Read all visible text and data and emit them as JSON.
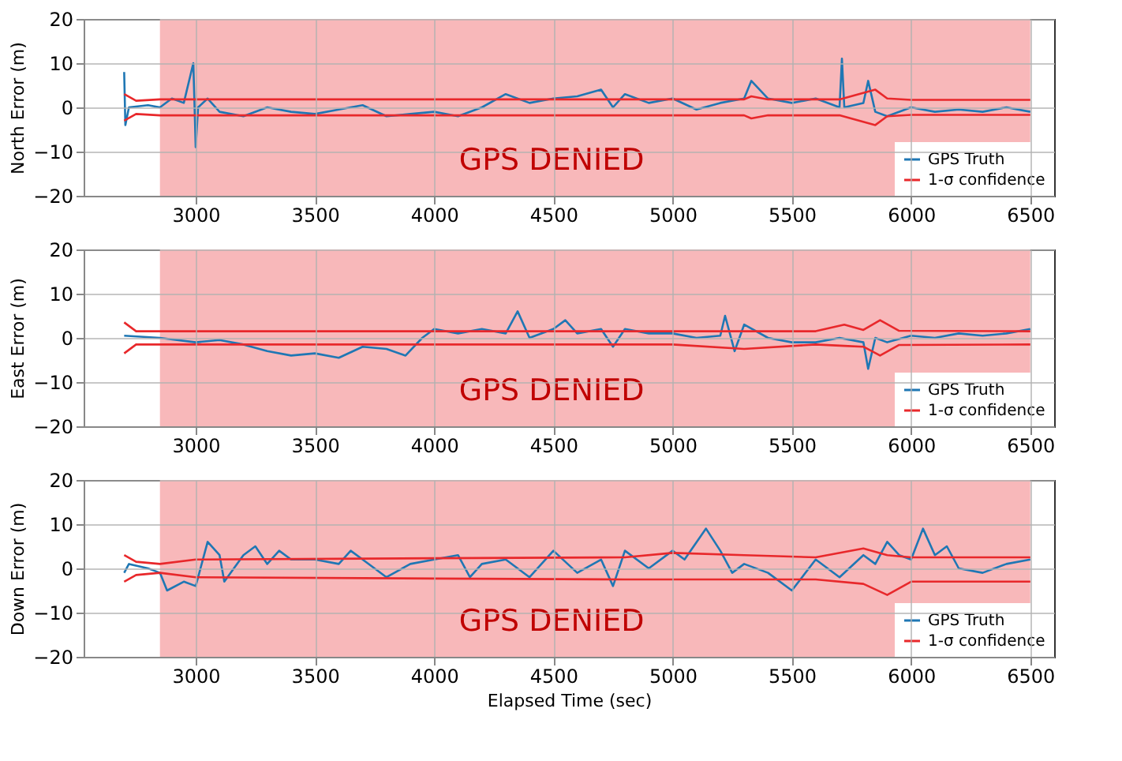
{
  "chart_data": [
    {
      "type": "line",
      "ylabel": "North Error (m)",
      "xlim": [
        2530,
        6600
      ],
      "ylim": [
        -20,
        20
      ],
      "xticks": [
        3000,
        3500,
        4000,
        4500,
        5000,
        5500,
        6000,
        6500
      ],
      "yticks": [
        -20,
        -10,
        0,
        10,
        20
      ],
      "grid": true,
      "legend": "bottom right",
      "bands": [
        {
          "axis": "x",
          "from": 2850,
          "to": 6500,
          "label": "GPS DENIED",
          "color": "#f8b8ba"
        }
      ],
      "series": [
        {
          "name": "GPS Truth",
          "color": "#1f77b4",
          "x": [
            2700,
            2705,
            2720,
            2800,
            2850,
            2900,
            2950,
            2990,
            3000,
            3010,
            3050,
            3100,
            3200,
            3300,
            3400,
            3500,
            3600,
            3700,
            3800,
            3900,
            4000,
            4100,
            4200,
            4300,
            4400,
            4500,
            4600,
            4700,
            4750,
            4800,
            4900,
            5000,
            5100,
            5200,
            5300,
            5330,
            5400,
            5500,
            5600,
            5700,
            5710,
            5720,
            5800,
            5820,
            5850,
            5900,
            6000,
            6100,
            6200,
            6300,
            6400,
            6500
          ],
          "values": [
            8,
            -4,
            0,
            0.5,
            0,
            2,
            1,
            10,
            -9,
            0,
            2,
            -1,
            -2,
            0,
            -1,
            -1.5,
            -0.5,
            0.5,
            -2,
            -1.5,
            -1,
            -2,
            0,
            3,
            1,
            2,
            2.5,
            4,
            0,
            3,
            1,
            2,
            -0.5,
            1,
            2,
            6,
            2,
            1,
            2,
            0,
            11,
            0,
            1,
            6,
            -1,
            -2,
            0,
            -1,
            -0.5,
            -1,
            0,
            -1
          ]
        },
        {
          "name": "1-σ confidence",
          "color": "#e8282b",
          "x": [
            2700,
            2750,
            2850,
            3500,
            4500,
            5300,
            5330,
            5400,
            5700,
            5850,
            5900,
            6000,
            6500
          ],
          "values": [
            3,
            1.5,
            1.8,
            1.8,
            1.8,
            1.8,
            2.5,
            1.8,
            1.8,
            4,
            2,
            1.7,
            1.7
          ]
        },
        {
          "color": "#e8282b",
          "x": [
            2700,
            2750,
            2850,
            3500,
            4500,
            5300,
            5330,
            5400,
            5700,
            5850,
            5900,
            6000,
            6500
          ],
          "values": [
            -3,
            -1.5,
            -1.8,
            -1.8,
            -1.8,
            -1.8,
            -2.5,
            -1.8,
            -1.8,
            -4,
            -2,
            -1.7,
            -1.7
          ]
        }
      ]
    },
    {
      "type": "line",
      "ylabel": "East Error (m)",
      "xlim": [
        2530,
        6600
      ],
      "ylim": [
        -20,
        20
      ],
      "xticks": [
        3000,
        3500,
        4000,
        4500,
        5000,
        5500,
        6000,
        6500
      ],
      "yticks": [
        -20,
        -10,
        0,
        10,
        20
      ],
      "grid": true,
      "legend": "bottom right",
      "bands": [
        {
          "axis": "x",
          "from": 2850,
          "to": 6500,
          "label": "GPS DENIED",
          "color": "#f8b8ba"
        }
      ],
      "series": [
        {
          "name": "GPS Truth",
          "color": "#1f77b4",
          "x": [
            2700,
            2850,
            3000,
            3100,
            3200,
            3300,
            3400,
            3500,
            3600,
            3700,
            3800,
            3880,
            3950,
            4000,
            4100,
            4200,
            4300,
            4350,
            4400,
            4500,
            4550,
            4600,
            4700,
            4750,
            4800,
            4900,
            5000,
            5100,
            5200,
            5220,
            5260,
            5300,
            5400,
            5500,
            5600,
            5700,
            5800,
            5820,
            5850,
            5900,
            6000,
            6100,
            6200,
            6300,
            6400,
            6500
          ],
          "values": [
            0.5,
            0,
            -1,
            -0.5,
            -1.5,
            -3,
            -4,
            -3.5,
            -4.5,
            -2,
            -2.5,
            -4,
            0,
            2,
            1,
            2,
            1,
            6,
            0,
            2,
            4,
            1,
            2,
            -2,
            2,
            1,
            1,
            0,
            0.5,
            5,
            -3,
            3,
            0,
            -1,
            -1,
            0,
            -1,
            -7,
            0,
            -1,
            0.5,
            0,
            1,
            0.5,
            1,
            2
          ]
        },
        {
          "name": "1-σ confidence",
          "color": "#e8282b",
          "x": [
            2700,
            2750,
            2850,
            4000,
            5000,
            5600,
            5720,
            5800,
            5870,
            5950,
            6500
          ],
          "values": [
            3.5,
            1.5,
            1.5,
            1.5,
            1.5,
            1.5,
            3,
            1.8,
            4,
            1.6,
            1.5
          ]
        },
        {
          "color": "#e8282b",
          "x": [
            2700,
            2750,
            2850,
            4000,
            5000,
            5300,
            5600,
            5720,
            5800,
            5870,
            5950,
            6500
          ],
          "values": [
            -3.5,
            -1.5,
            -1.5,
            -1.5,
            -1.5,
            -2.5,
            -1.5,
            -1.8,
            -2,
            -4,
            -1.6,
            -1.5
          ]
        }
      ]
    },
    {
      "type": "line",
      "xlabel": "Elapsed Time (sec)",
      "ylabel": "Down Error (m)",
      "xlim": [
        2530,
        6600
      ],
      "ylim": [
        -20,
        20
      ],
      "xticks": [
        3000,
        3500,
        4000,
        4500,
        5000,
        5500,
        6000,
        6500
      ],
      "yticks": [
        -20,
        -10,
        0,
        10,
        20
      ],
      "grid": true,
      "legend": "bottom right",
      "bands": [
        {
          "axis": "x",
          "from": 2850,
          "to": 6500,
          "label": "GPS DENIED",
          "color": "#f8b8ba"
        }
      ],
      "series": [
        {
          "name": "GPS Truth",
          "color": "#1f77b4",
          "x": [
            2700,
            2720,
            2800,
            2850,
            2880,
            2950,
            3000,
            3050,
            3100,
            3120,
            3200,
            3250,
            3300,
            3350,
            3400,
            3500,
            3600,
            3650,
            3700,
            3800,
            3900,
            4000,
            4100,
            4150,
            4200,
            4300,
            4400,
            4500,
            4600,
            4700,
            4750,
            4800,
            4900,
            5000,
            5050,
            5140,
            5200,
            5250,
            5300,
            5400,
            5500,
            5600,
            5700,
            5800,
            5850,
            5900,
            5950,
            6000,
            6050,
            6100,
            6150,
            6200,
            6300,
            6400,
            6500
          ],
          "values": [
            -1,
            1,
            0,
            -1,
            -5,
            -3,
            -4,
            6,
            3,
            -3,
            3,
            5,
            1,
            4,
            2,
            2,
            1,
            4,
            2,
            -2,
            1,
            2,
            3,
            -2,
            1,
            2,
            -2,
            4,
            -1,
            2,
            -4,
            4,
            0,
            4,
            2,
            9,
            4,
            -1,
            1,
            -1,
            -5,
            2,
            -2,
            3,
            1,
            6,
            3,
            2,
            9,
            3,
            5,
            0,
            -1,
            1,
            2
          ]
        },
        {
          "name": "1-σ confidence",
          "color": "#e8282b",
          "x": [
            2700,
            2750,
            2850,
            3000,
            4000,
            4800,
            5000,
            5300,
            5600,
            5800,
            5900,
            6000,
            6500
          ],
          "values": [
            3,
            1.5,
            1,
            2,
            2.3,
            2.5,
            3.5,
            3,
            2.5,
            4.5,
            3,
            2.5,
            2.5
          ]
        },
        {
          "color": "#e8282b",
          "x": [
            2700,
            2750,
            2850,
            3000,
            4000,
            4800,
            5100,
            5600,
            5800,
            5900,
            6000,
            6500
          ],
          "values": [
            -3,
            -1.5,
            -1,
            -2,
            -2.3,
            -2.5,
            -2.5,
            -2.5,
            -3.5,
            -6,
            -3,
            -3
          ]
        }
      ]
    }
  ]
}
